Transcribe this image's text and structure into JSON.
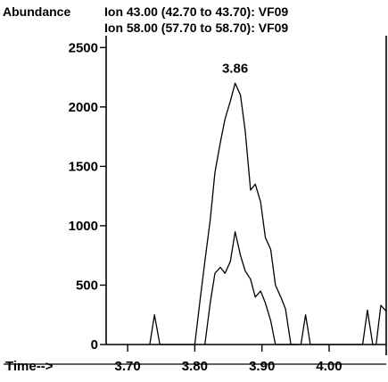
{
  "chart_data": {
    "type": "line",
    "ylabel": "Abundance",
    "xlabel": "Time-->",
    "xlim": [
      3.668,
      4.085
    ],
    "ylim": [
      0,
      2600
    ],
    "x_ticks": [
      3.7,
      3.8,
      3.9,
      4.0
    ],
    "x_tick_labels": [
      "3.70",
      "3.80",
      "3.90",
      "4.00"
    ],
    "y_ticks": [
      0,
      500,
      1000,
      1500,
      2000,
      2500
    ],
    "y_tick_labels": [
      "0",
      "500",
      "1000",
      "1500",
      "2000",
      "2500"
    ],
    "grid": false,
    "legend_position": "top",
    "peak_label": {
      "text": "3.86",
      "x": 3.86,
      "y": 2220
    },
    "series": [
      {
        "name": "Ion  43.00 (42.70 to 43.70): VF09",
        "points": [
          [
            3.733,
            0
          ],
          [
            3.74,
            250
          ],
          [
            3.748,
            0
          ],
          [
            3.8,
            0
          ],
          [
            3.808,
            380
          ],
          [
            3.815,
            700
          ],
          [
            3.823,
            1050
          ],
          [
            3.83,
            1450
          ],
          [
            3.838,
            1700
          ],
          [
            3.845,
            1900
          ],
          [
            3.853,
            2050
          ],
          [
            3.86,
            2200
          ],
          [
            3.868,
            2100
          ],
          [
            3.875,
            1800
          ],
          [
            3.883,
            1300
          ],
          [
            3.89,
            1350
          ],
          [
            3.898,
            1200
          ],
          [
            3.905,
            900
          ],
          [
            3.913,
            800
          ],
          [
            3.92,
            500
          ],
          [
            3.928,
            400
          ],
          [
            3.935,
            300
          ],
          [
            3.943,
            0
          ],
          [
            3.95,
            0
          ]
        ]
      },
      {
        "name": "Ion  58.00 (57.70 to 58.70): VF09",
        "points": [
          [
            3.815,
            0
          ],
          [
            3.823,
            350
          ],
          [
            3.83,
            600
          ],
          [
            3.838,
            650
          ],
          [
            3.845,
            600
          ],
          [
            3.853,
            700
          ],
          [
            3.86,
            950
          ],
          [
            3.868,
            750
          ],
          [
            3.875,
            620
          ],
          [
            3.883,
            550
          ],
          [
            3.89,
            400
          ],
          [
            3.898,
            450
          ],
          [
            3.905,
            350
          ],
          [
            3.913,
            200
          ],
          [
            3.92,
            0
          ],
          [
            3.958,
            0
          ],
          [
            3.965,
            250
          ],
          [
            3.972,
            0
          ],
          [
            4.05,
            0
          ],
          [
            4.057,
            290
          ],
          [
            4.065,
            0
          ],
          [
            4.07,
            0
          ],
          [
            4.077,
            330
          ],
          [
            4.085,
            280
          ]
        ]
      }
    ]
  }
}
